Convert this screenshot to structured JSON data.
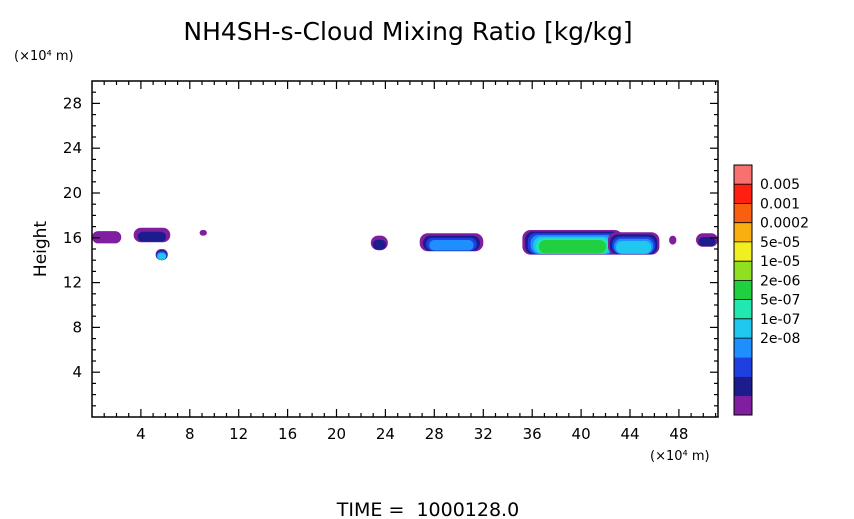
{
  "chart_data": {
    "type": "heatmap",
    "title": "NH4SH-s-Cloud Mixing Ratio [kg/kg]",
    "ylabel": "Height",
    "y_unit": "(×10⁴ m)",
    "x_unit": "(×10⁴ m)",
    "footer": "TIME =  1000128.0",
    "xlim": [
      0,
      51.2
    ],
    "ylim": [
      0,
      30
    ],
    "x_ticks": [
      4,
      8,
      12,
      16,
      20,
      24,
      28,
      32,
      36,
      40,
      44,
      48
    ],
    "y_ticks": [
      4,
      8,
      12,
      16,
      20,
      24,
      28
    ],
    "colorbar": {
      "labels": [
        "0.005",
        "0.001",
        "0.0002",
        "5e-05",
        "1e-05",
        "2e-06",
        "5e-07",
        "1e-07",
        "2e-08"
      ],
      "colors": [
        "#7f1fa0",
        "#1c1c8c",
        "#1f3fe0",
        "#1f8fff",
        "#20c8f0",
        "#20e8b0",
        "#20d040",
        "#90e020",
        "#f0f020",
        "#f8b010",
        "#f86010",
        "#ff2010",
        "#f87070"
      ]
    },
    "cloud_blobs": [
      {
        "x0": 0.0,
        "x1": 2.4,
        "base": 15.5,
        "top": 16.6,
        "peak": 0.05
      },
      {
        "x0": 3.4,
        "x1": 6.4,
        "base": 15.6,
        "top": 16.9,
        "peak": 0.1
      },
      {
        "x0": 5.2,
        "x1": 6.2,
        "base": 14.0,
        "top": 15.0,
        "peak": 0.55
      },
      {
        "x0": 8.8,
        "x1": 9.4,
        "base": 16.2,
        "top": 16.7,
        "peak": 0.0
      },
      {
        "x0": 22.8,
        "x1": 24.2,
        "base": 14.9,
        "top": 16.2,
        "peak": 0.1
      },
      {
        "x0": 26.8,
        "x1": 32.0,
        "base": 14.8,
        "top": 16.4,
        "peak": 0.4
      },
      {
        "x0": 35.2,
        "x1": 43.4,
        "base": 14.5,
        "top": 16.7,
        "peak": 0.75
      },
      {
        "x0": 42.2,
        "x1": 46.4,
        "base": 14.5,
        "top": 16.5,
        "peak": 0.5
      },
      {
        "x0": 47.2,
        "x1": 47.8,
        "base": 15.4,
        "top": 16.2,
        "peak": 0.05
      },
      {
        "x0": 49.4,
        "x1": 51.2,
        "base": 15.2,
        "top": 16.4,
        "peak": 0.15
      }
    ]
  }
}
